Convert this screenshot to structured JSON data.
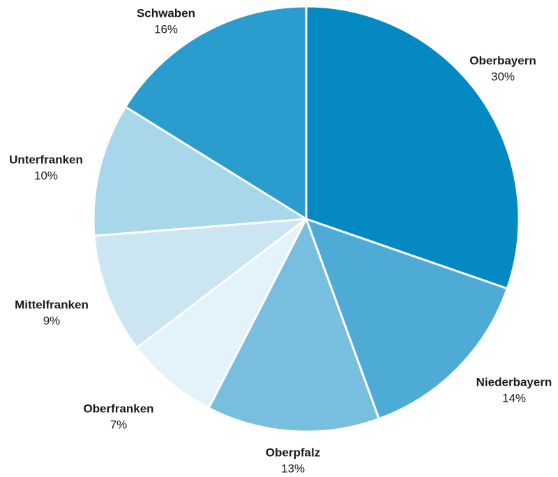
{
  "chart_data": {
    "type": "pie",
    "title": "",
    "start": "top",
    "direction": "clockwise",
    "slices": [
      {
        "label": "Oberbayern",
        "percent_label": "30%",
        "value": 30,
        "color": "#0589c3"
      },
      {
        "label": "Niederbayern",
        "percent_label": "14%",
        "value": 14,
        "color": "#4eabd6"
      },
      {
        "label": "Oberpfalz",
        "percent_label": "13%",
        "value": 13,
        "color": "#78bedf"
      },
      {
        "label": "Oberfranken",
        "percent_label": "7%",
        "value": 7,
        "color": "#e4f2f9"
      },
      {
        "label": "Mittelfranken",
        "percent_label": "9%",
        "value": 9,
        "color": "#cbe6f2"
      },
      {
        "label": "Unterfranken",
        "percent_label": "10%",
        "value": 10,
        "color": "#a8d6ea"
      },
      {
        "label": "Schwaben",
        "percent_label": "16%",
        "value": 16,
        "color": "#2a9ccd"
      }
    ]
  }
}
